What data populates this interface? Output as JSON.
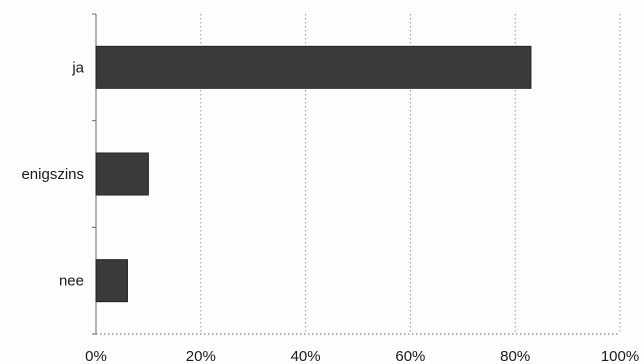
{
  "chart_data": {
    "type": "bar",
    "orientation": "horizontal",
    "categories": [
      "ja",
      "enigszins",
      "nee"
    ],
    "series": [
      {
        "values": [
          83,
          10,
          6
        ]
      }
    ],
    "x_ticks": [
      "0%",
      "20%",
      "40%",
      "60%",
      "80%",
      "100%"
    ],
    "xlim": [
      0,
      100
    ],
    "title": "",
    "xlabel": "",
    "ylabel": "",
    "grid": "vertical dotted",
    "legend": "none",
    "colors": {
      "bar": "#3a3a3a",
      "grid": "#9a9a9a",
      "axis": "#6a6a6a"
    }
  }
}
